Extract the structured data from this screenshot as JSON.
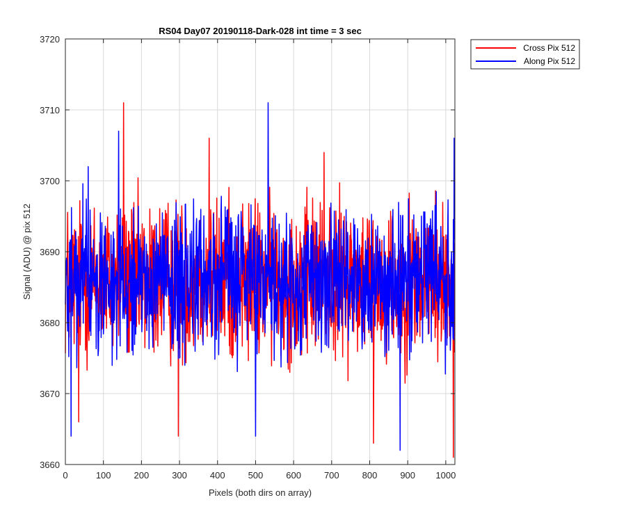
{
  "chart_data": {
    "type": "line",
    "title": "RS04 Day07 20190118-Dark-028 int time = 3 sec",
    "xlabel": "Pixels (both dirs on array)",
    "ylabel": "Signal (ADU) @ pix 512",
    "xlim": [
      0,
      1024
    ],
    "ylim": [
      3660,
      3720
    ],
    "xticks": [
      0,
      100,
      200,
      300,
      400,
      500,
      600,
      700,
      800,
      900,
      1000
    ],
    "yticks": [
      3660,
      3670,
      3680,
      3690,
      3700,
      3710,
      3720
    ],
    "grid": true,
    "legend_position": "outside-top-right",
    "colors": {
      "cross": "#ff0000",
      "along": "#0000ff",
      "grid": "#d9d9d9",
      "axis": "#262626"
    },
    "series": [
      {
        "name": "Cross Pix 512",
        "color": "#ff0000",
        "n_points": 1024,
        "mean": 3686,
        "noise_amplitude": 7,
        "min": 3661,
        "max": 3711,
        "peaks": [
          [
            153,
            3711
          ],
          [
            297,
            3664
          ],
          [
            378,
            3706
          ],
          [
            35,
            3666
          ],
          [
            810,
            3663
          ],
          [
            1020,
            3661
          ],
          [
            680,
            3704
          ],
          [
            860,
            3695
          ]
        ]
      },
      {
        "name": "Along Pix 512",
        "color": "#0000ff",
        "n_points": 1024,
        "mean": 3686,
        "noise_amplitude": 6,
        "min": 3662,
        "max": 3711,
        "peaks": [
          [
            533,
            3711
          ],
          [
            140,
            3707
          ],
          [
            500,
            3664
          ],
          [
            880,
            3662
          ],
          [
            15,
            3664
          ],
          [
            1022,
            3706
          ],
          [
            60,
            3702
          ]
        ]
      }
    ]
  }
}
